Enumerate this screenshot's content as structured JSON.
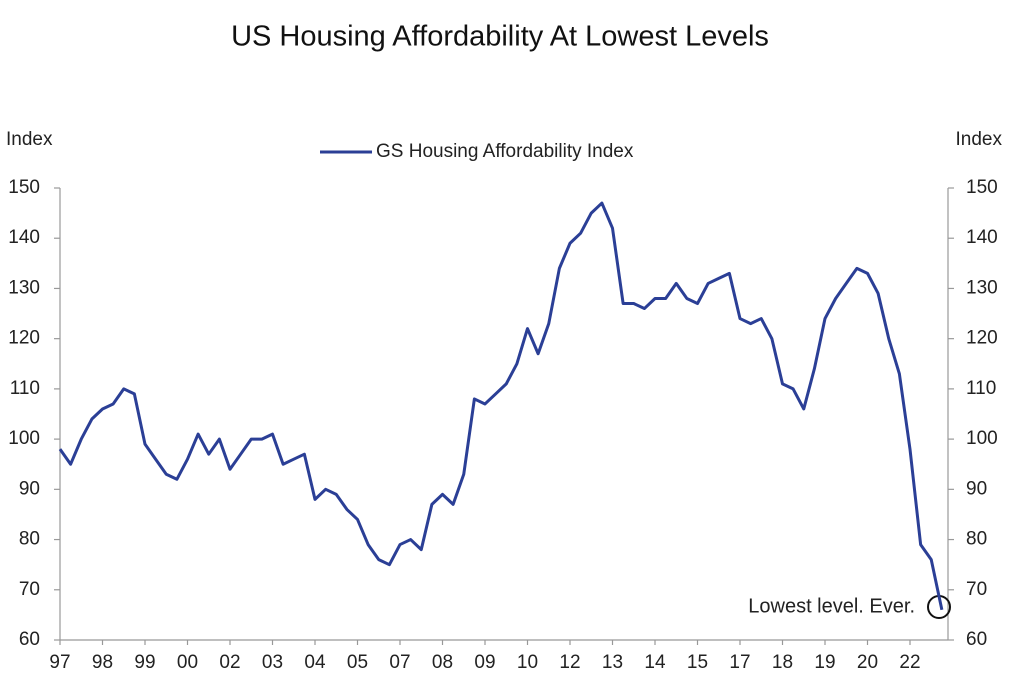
{
  "chart_data": {
    "type": "line",
    "title": "US Housing Affordability At Lowest Levels",
    "y_label": "Index",
    "y2_label": "Index",
    "annotation": "Lowest level. Ever.",
    "categories": [
      "97",
      null,
      null,
      null,
      "98",
      null,
      null,
      null,
      "99",
      null,
      null,
      null,
      "00",
      null,
      null,
      null,
      "02",
      null,
      null,
      null,
      "03",
      null,
      null,
      null,
      "04",
      null,
      null,
      null,
      "05",
      null,
      null,
      null,
      "07",
      null,
      null,
      null,
      "08",
      null,
      null,
      null,
      "09",
      null,
      null,
      null,
      "10",
      null,
      null,
      null,
      "12",
      null,
      null,
      null,
      "13",
      null,
      null,
      null,
      "14",
      null,
      null,
      null,
      "15",
      null,
      null,
      null,
      "17",
      null,
      null,
      null,
      "18",
      null,
      null,
      null,
      "19",
      null,
      null,
      null,
      "20",
      null,
      null,
      null,
      "22",
      null,
      null,
      null
    ],
    "series": [
      {
        "name": "GS Housing Affordability Index",
        "color": "#2b3f96",
        "values": [
          98,
          95,
          100,
          104,
          106,
          107,
          110,
          109,
          99,
          96,
          93,
          92,
          96,
          101,
          97,
          100,
          94,
          97,
          100,
          100,
          101,
          95,
          96,
          97,
          88,
          90,
          89,
          86,
          84,
          79,
          76,
          75,
          79,
          80,
          78,
          87,
          89,
          87,
          93,
          108,
          107,
          109,
          111,
          115,
          122,
          117,
          123,
          134,
          139,
          141,
          145,
          147,
          142,
          127,
          127,
          126,
          128,
          128,
          131,
          128,
          127,
          131,
          132,
          133,
          124,
          123,
          124,
          120,
          111,
          110,
          106,
          114,
          124,
          128,
          131,
          134,
          133,
          129,
          120,
          113,
          98,
          79,
          76,
          66
        ]
      }
    ],
    "ylim": [
      60,
      150
    ],
    "yticks": [
      60,
      70,
      80,
      90,
      100,
      110,
      120,
      130,
      140,
      150
    ],
    "y2lim": [
      60,
      150
    ],
    "y2ticks": [
      60,
      70,
      80,
      90,
      100,
      110,
      120,
      130,
      140,
      150
    ]
  }
}
